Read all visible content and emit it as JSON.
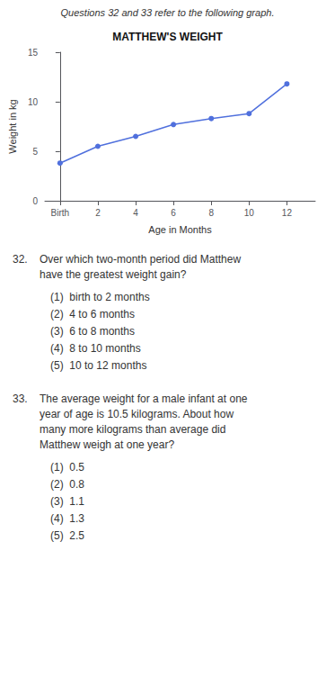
{
  "chart_data": {
    "type": "line",
    "title": "MATTHEW'S WEIGHT",
    "x_label": "Age in Months",
    "y_label": "Weight in kg",
    "x": [
      0,
      2,
      4,
      6,
      8,
      10,
      12
    ],
    "values": [
      3.8,
      5.5,
      6.5,
      7.7,
      8.3,
      8.8,
      11.8
    ],
    "xlim": [
      -0.8,
      13.5
    ],
    "xticks": [
      {
        "value": 0,
        "label": "Birth"
      },
      2,
      4,
      6,
      8,
      10,
      12
    ],
    "ylim": [
      0,
      15
    ],
    "yticks": [
      0,
      5,
      10,
      15
    ],
    "grid": false,
    "marker": "circle",
    "line_style": "solid",
    "annotations": [
      "Questions 32 and 33 refer to the following graph.",
      {
        "number": "32.",
        "lines": [
          "Over which two-month period did Matthew",
          "have the greatest weight gain?"
        ],
        "options": [
          "(1)  birth to 2 months",
          "(2)  4 to 6 months",
          "(3)  6 to 8 months",
          "(4)  8 to 10 months",
          "(5)  10 to 12 months"
        ]
      },
      {
        "number": "33.",
        "lines": [
          "The average weight for a male infant at one",
          "year of age is 10.5 kilograms. About how",
          "many more kilograms than average did",
          "Matthew weigh at one year?"
        ],
        "options": [
          "(1)  0.5",
          "(2)  0.8",
          "(3)  1.1",
          "(4)  1.3",
          "(5)  2.5"
        ]
      }
    ]
  }
}
